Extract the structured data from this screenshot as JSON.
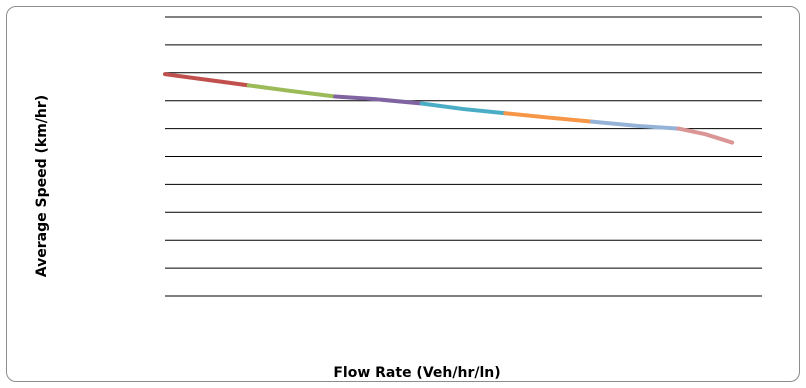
{
  "chart_data": {
    "type": "line",
    "title": "",
    "xlabel": "Flow Rate (Veh/hr/ln)",
    "ylabel": "Average Speed (km/hr)",
    "xlim": [
      0,
      1
    ],
    "ylim": [
      0,
      1
    ],
    "grid": true,
    "gridline_values": [
      0.1,
      0.2,
      0.3,
      0.4,
      0.5,
      0.6,
      0.7,
      0.8,
      0.9,
      1.0
    ],
    "tick_labels_shown": false,
    "legend": "none",
    "series": [
      {
        "color": "#c0504d",
        "points": [
          [
            0.0,
            0.795
          ],
          [
            0.07,
            0.775
          ],
          [
            0.14,
            0.755
          ]
        ]
      },
      {
        "color": "#9bbb59",
        "points": [
          [
            0.14,
            0.755
          ],
          [
            0.21,
            0.735
          ],
          [
            0.285,
            0.715
          ]
        ]
      },
      {
        "color": "#8064a2",
        "points": [
          [
            0.285,
            0.715
          ],
          [
            0.355,
            0.705
          ],
          [
            0.43,
            0.69
          ]
        ]
      },
      {
        "color": "#4bacc6",
        "points": [
          [
            0.43,
            0.69
          ],
          [
            0.5,
            0.67
          ],
          [
            0.57,
            0.655
          ]
        ]
      },
      {
        "color": "#f79646",
        "points": [
          [
            0.57,
            0.655
          ],
          [
            0.64,
            0.64
          ],
          [
            0.715,
            0.625
          ]
        ]
      },
      {
        "color": "#95b3d7",
        "points": [
          [
            0.715,
            0.625
          ],
          [
            0.79,
            0.61
          ],
          [
            0.86,
            0.6
          ]
        ]
      },
      {
        "color": "#d99694",
        "points": [
          [
            0.86,
            0.6
          ],
          [
            0.905,
            0.58
          ],
          [
            0.95,
            0.55
          ]
        ]
      }
    ]
  }
}
